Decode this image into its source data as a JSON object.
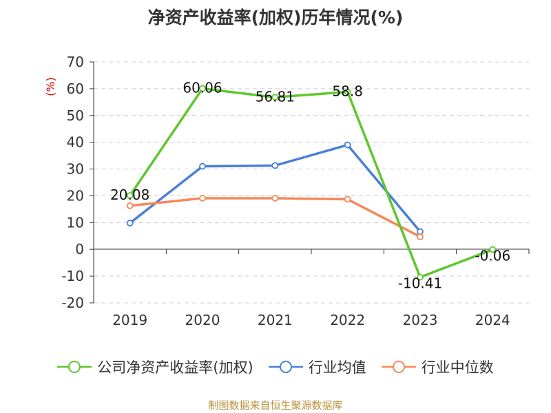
{
  "title": "净资产收益率(加权)历年情况(%)",
  "source": "制图数据来自恒生聚源数据库",
  "colors": {
    "title": "#333333",
    "source": "#b8913a",
    "unit": "#e00000",
    "axis": "#333333",
    "grid": "#cccccc"
  },
  "chart_data": {
    "type": "line",
    "title": "净资产收益率(加权)历年情况(%)",
    "ylabel": "(%)",
    "xlabel": "",
    "categories": [
      "2019",
      "2020",
      "2021",
      "2022",
      "2023",
      "2024"
    ],
    "ylim": [
      -20,
      70
    ],
    "yticks": [
      -20,
      -10,
      0,
      10,
      20,
      30,
      40,
      50,
      60,
      70
    ],
    "grid": true,
    "legend_position": "bottom",
    "series": [
      {
        "name": "公司净资产收益率(加权)",
        "color": "#5ec72f",
        "values": [
          20.08,
          60.06,
          56.81,
          58.8,
          -10.41,
          -0.06
        ],
        "labels": [
          "20.08",
          "60.06",
          "56.81",
          "58.8",
          "-10.41",
          "-0.06"
        ]
      },
      {
        "name": "行业均值",
        "color": "#4a7fd8",
        "values": [
          9.8,
          31.0,
          31.3,
          39.0,
          6.6,
          null
        ],
        "labels": []
      },
      {
        "name": "行业中位数",
        "color": "#f5895a",
        "values": [
          16.3,
          19.1,
          19.1,
          18.7,
          4.7,
          null
        ],
        "labels": []
      }
    ]
  }
}
